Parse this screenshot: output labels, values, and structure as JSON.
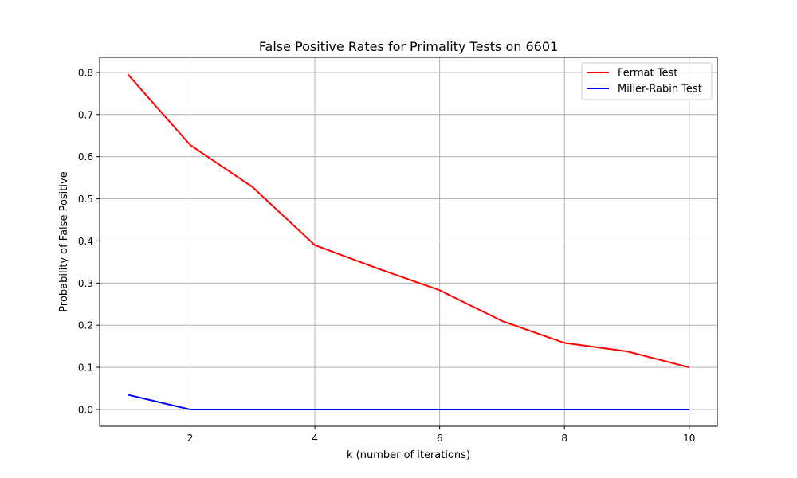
{
  "chart_data": {
    "type": "line",
    "title": "False Positive Rates for Primality Tests on 6601",
    "xlabel": "k (number of iterations)",
    "ylabel": "Probability of False Positive",
    "xlim": [
      0.55,
      10.45
    ],
    "ylim": [
      -0.0398,
      0.8358
    ],
    "xticks": [
      2,
      4,
      6,
      8,
      10
    ],
    "xtick_labels": [
      "2",
      "4",
      "6",
      "8",
      "10"
    ],
    "yticks": [
      0.0,
      0.1,
      0.2,
      0.3,
      0.4,
      0.5,
      0.6,
      0.7,
      0.8
    ],
    "ytick_labels": [
      "0.0",
      "0.1",
      "0.2",
      "0.3",
      "0.4",
      "0.5",
      "0.6",
      "0.7",
      "0.8"
    ],
    "grid": true,
    "legend_position": "top-right",
    "x": [
      1,
      2,
      3,
      4,
      5,
      6,
      7,
      8,
      9,
      10
    ],
    "series": [
      {
        "name": "Fermat Test",
        "color": "#ff0000",
        "values": [
          0.796,
          0.628,
          0.528,
          0.39,
          0.335,
          0.283,
          0.21,
          0.158,
          0.138,
          0.1
        ]
      },
      {
        "name": "Miller-Rabin Test",
        "color": "#0000ff",
        "values": [
          0.035,
          0.0,
          0.0,
          0.0,
          0.0,
          0.0,
          0.0,
          0.0,
          0.0,
          0.0
        ]
      }
    ]
  }
}
